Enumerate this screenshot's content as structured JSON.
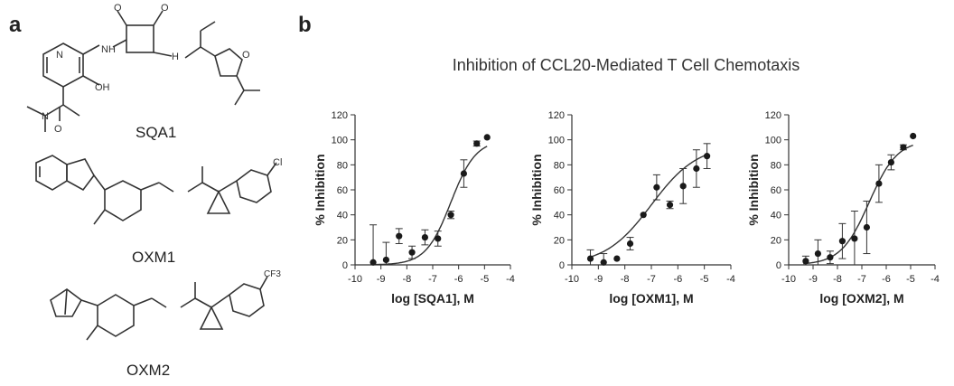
{
  "panels": {
    "a_label": "a",
    "b_label": "b"
  },
  "structures": {
    "compound_1": "SQA1",
    "compound_2": "OXM1",
    "compound_3": "OXM2",
    "cl_atom": "Cl",
    "cf3_group": "CF3"
  },
  "chart_data": [
    {
      "type": "scatter",
      "title": "Inhibition of CCL20-Mediated T Cell Chemotaxis",
      "xlabel": "log [SQA1], M",
      "ylabel": "% Inhibition",
      "xlim": [
        -10,
        -4
      ],
      "ylim": [
        0,
        120
      ],
      "xticks": [
        "-10",
        "-9",
        "-8",
        "-7",
        "-6",
        "-5",
        "-4"
      ],
      "yticks": [
        "0",
        "20",
        "40",
        "60",
        "80",
        "100",
        "120"
      ],
      "x": [
        -9.3,
        -8.8,
        -8.3,
        -7.8,
        -7.3,
        -6.8,
        -6.3,
        -5.8,
        -5.3,
        -4.9
      ],
      "y": [
        2,
        4,
        23,
        10,
        22,
        21,
        40,
        73,
        97,
        102
      ],
      "err": [
        30,
        14,
        6,
        5,
        6,
        6,
        3,
        11,
        2,
        0
      ],
      "fit_curve": {
        "bottom": 0,
        "top": 100,
        "log_ic50": -6.3,
        "hill": 0.9
      }
    },
    {
      "type": "scatter",
      "xlabel": "log [OXM1], M",
      "ylabel": "% Inhibition",
      "xlim": [
        -10,
        -4
      ],
      "ylim": [
        0,
        120
      ],
      "xticks": [
        "-10",
        "-9",
        "-8",
        "-7",
        "-6",
        "-5",
        "-4"
      ],
      "yticks": [
        "0",
        "20",
        "40",
        "60",
        "80",
        "100",
        "120"
      ],
      "x": [
        -9.3,
        -8.8,
        -8.3,
        -7.8,
        -7.3,
        -6.8,
        -6.3,
        -5.8,
        -5.3,
        -4.9
      ],
      "y": [
        5,
        2,
        5,
        17,
        40,
        62,
        48,
        63,
        77,
        87
      ],
      "err": [
        7,
        7,
        0,
        5,
        0,
        10,
        3,
        14,
        15,
        10
      ],
      "fit_curve": {
        "bottom": 0,
        "top": 96,
        "log_ic50": -7.0,
        "hill": 0.5
      }
    },
    {
      "type": "scatter",
      "xlabel": "log [OXM2], M",
      "ylabel": "% Inhibition",
      "xlim": [
        -10,
        -4
      ],
      "ylim": [
        0,
        120
      ],
      "xticks": [
        "-10",
        "-9",
        "-8",
        "-7",
        "-6",
        "-5",
        "-4"
      ],
      "yticks": [
        "0",
        "20",
        "40",
        "60",
        "80",
        "100",
        "120"
      ],
      "x": [
        -9.3,
        -8.8,
        -8.3,
        -7.8,
        -7.3,
        -6.8,
        -6.3,
        -5.8,
        -5.3,
        -4.9
      ],
      "y": [
        3,
        9,
        6,
        19,
        21,
        30,
        65,
        82,
        94,
        103
      ],
      "err": [
        4,
        11,
        5,
        14,
        22,
        21,
        15,
        6,
        2,
        0
      ],
      "fit_curve": {
        "bottom": 0,
        "top": 100,
        "log_ic50": -6.7,
        "hill": 0.75
      }
    }
  ]
}
